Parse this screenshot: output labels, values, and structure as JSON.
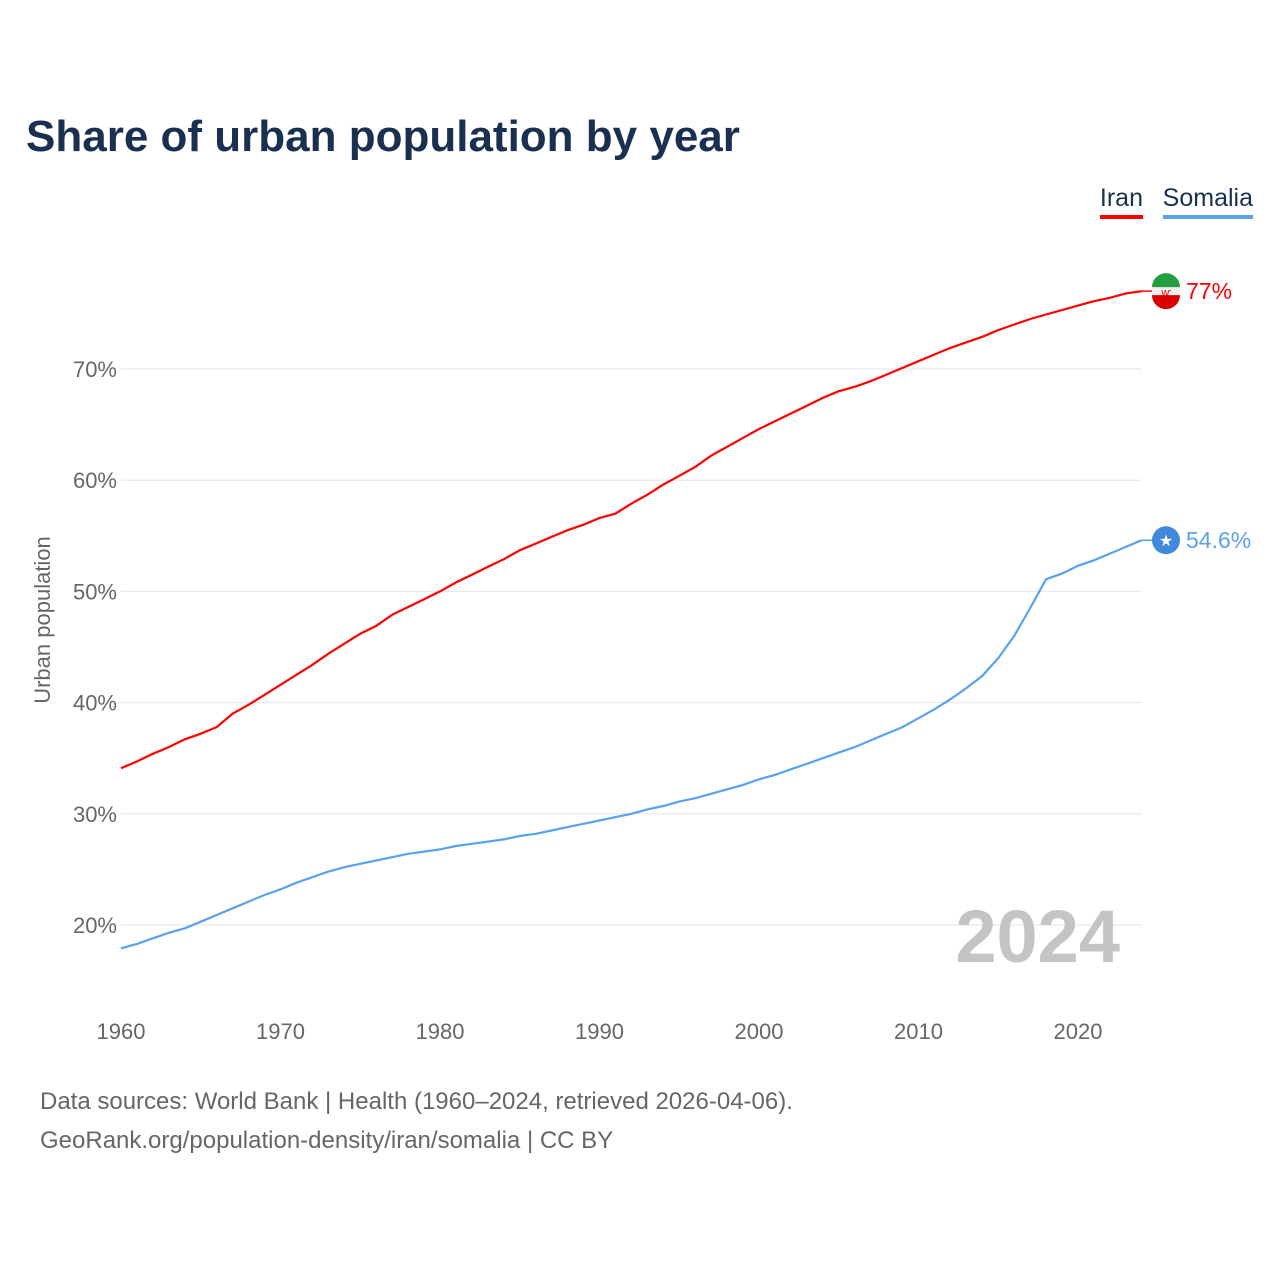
{
  "chart_data": {
    "type": "line",
    "title": "Share of urban population by year",
    "ylabel": "Urban population",
    "xlabel": "",
    "xlim": [
      1960,
      2024
    ],
    "ylim": [
      15,
      80
    ],
    "yticks": [
      20,
      30,
      40,
      50,
      60,
      70
    ],
    "ytick_labels": [
      "20%",
      "30%",
      "40%",
      "50%",
      "60%",
      "70%"
    ],
    "xticks": [
      1960,
      1970,
      1980,
      1990,
      2000,
      2010,
      2020
    ],
    "xtick_labels": [
      "1960",
      "1970",
      "1980",
      "1990",
      "2000",
      "2010",
      "2020"
    ],
    "grid": true,
    "legend_placement": "top-right",
    "year_watermark": "2024",
    "x_start": 1960,
    "series": [
      {
        "name": "Iran",
        "color": "#ff0000",
        "end_label": "77%",
        "values": [
          34.1,
          34.7,
          35.4,
          36.0,
          36.7,
          37.2,
          37.8,
          39.0,
          39.8,
          40.7,
          41.6,
          42.5,
          43.4,
          44.4,
          45.3,
          46.2,
          46.9,
          47.9,
          48.6,
          49.3,
          50.0,
          50.8,
          51.5,
          52.2,
          52.9,
          53.7,
          54.3,
          54.9,
          55.5,
          56.0,
          56.6,
          57.0,
          57.9,
          58.7,
          59.6,
          60.4,
          61.2,
          62.2,
          63.0,
          63.8,
          64.6,
          65.3,
          66.0,
          66.7,
          67.4,
          68.0,
          68.4,
          68.9,
          69.5,
          70.1,
          70.7,
          71.3,
          71.9,
          72.4,
          72.9,
          73.5,
          74.0,
          74.5,
          74.9,
          75.3,
          75.7,
          76.1,
          76.4,
          76.8,
          77.0
        ]
      },
      {
        "name": "Somalia",
        "color": "#5aa2ee",
        "end_label": "54.6%",
        "values": [
          17.9,
          18.3,
          18.8,
          19.3,
          19.7,
          20.3,
          20.9,
          21.5,
          22.1,
          22.7,
          23.2,
          23.8,
          24.3,
          24.8,
          25.2,
          25.5,
          25.8,
          26.1,
          26.4,
          26.6,
          26.8,
          27.1,
          27.3,
          27.5,
          27.7,
          28.0,
          28.2,
          28.5,
          28.8,
          29.1,
          29.4,
          29.7,
          30.0,
          30.4,
          30.7,
          31.1,
          31.4,
          31.8,
          32.2,
          32.6,
          33.1,
          33.5,
          34.0,
          34.5,
          35.0,
          35.5,
          36.0,
          36.6,
          37.2,
          37.8,
          38.6,
          39.4,
          40.3,
          41.3,
          42.4,
          44.0,
          46.0,
          48.5,
          51.1,
          51.6,
          52.3,
          52.8,
          53.4,
          54.0,
          54.6
        ]
      }
    ]
  },
  "footer": {
    "line1": "Data sources: World Bank | Health (1960–2024, retrieved 2026-04-06).",
    "line2": "GeoRank.org/population-density/iran/somalia | CC BY"
  }
}
